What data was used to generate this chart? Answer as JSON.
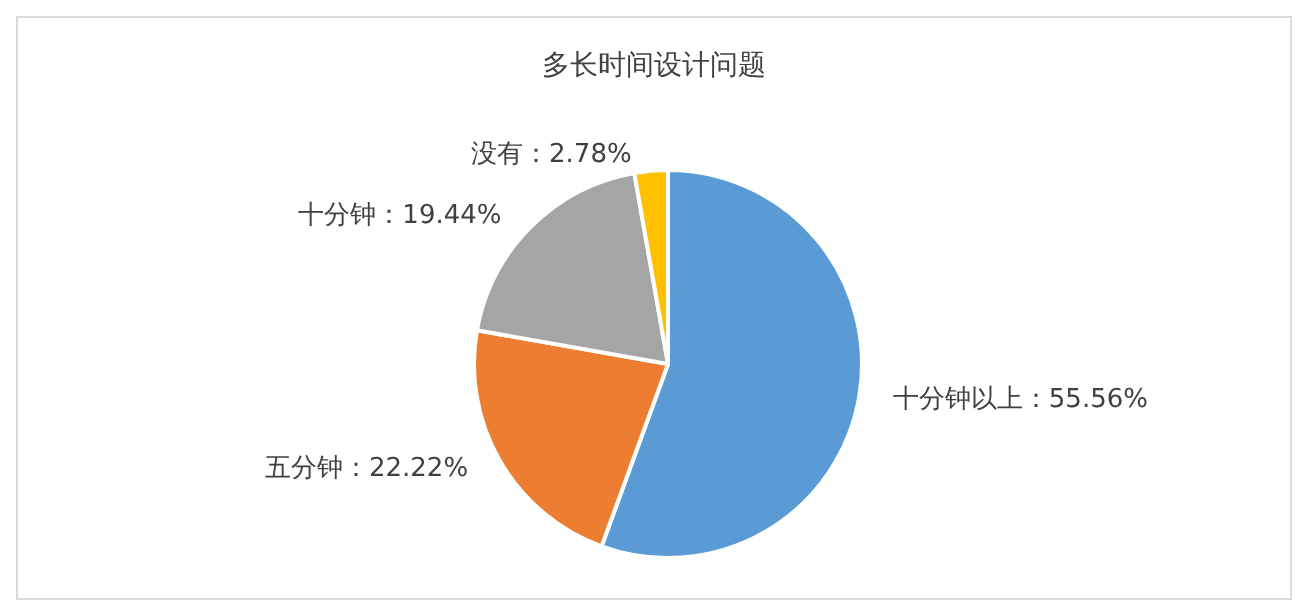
{
  "chart_data": {
    "type": "pie",
    "title": "多长时间设计问题",
    "categories": [
      "十分钟以上",
      "五分钟",
      "十分钟",
      "没有"
    ],
    "values": [
      55.56,
      22.22,
      19.44,
      2.78
    ],
    "value_labels": [
      "55.56%",
      "22.22%",
      "19.44%",
      "2.78%"
    ],
    "colors": [
      "#5b9bd5",
      "#ed7d31",
      "#a5a5a5",
      "#ffc000"
    ],
    "legend": false
  }
}
